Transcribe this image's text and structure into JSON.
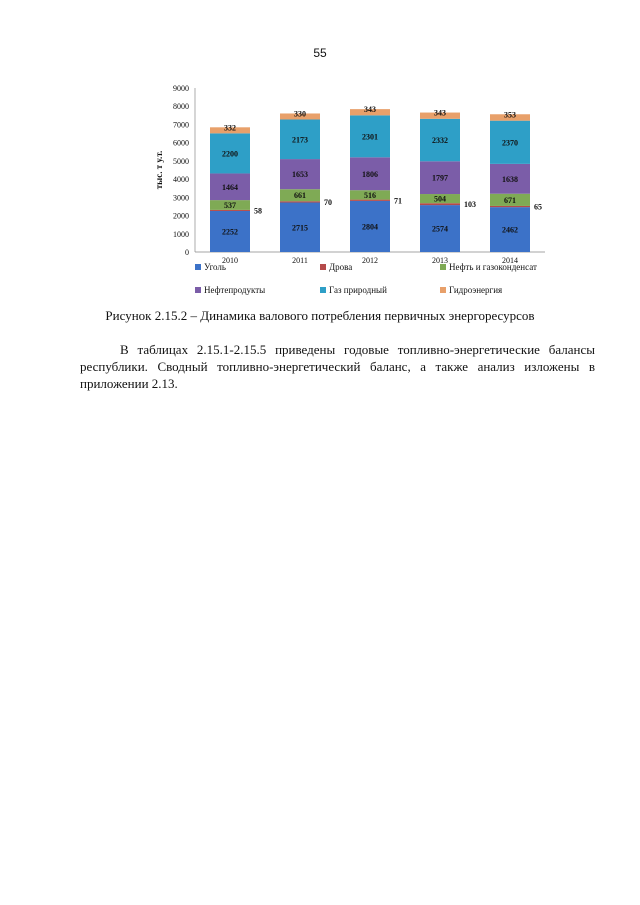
{
  "page": {
    "number": "55",
    "caption": "Рисунок 2.15.2 – Динамика валового потребления первичных энергоресурсов",
    "paragraph": "В таблицах 2.15.1-2.15.5 приведены годовые топливно-энергетические балансы республики. Сводный топливно-энергетический баланс, а также анализ изложены в приложении 2.13."
  },
  "chart_data": {
    "type": "bar",
    "stacked": true,
    "title": "",
    "xlabel": "",
    "ylabel": "тыс. т у.т.",
    "ylim": [
      0,
      9000
    ],
    "yticks": [
      0,
      1000,
      2000,
      3000,
      4000,
      5000,
      6000,
      7000,
      8000,
      9000
    ],
    "categories": [
      "2010",
      "2011",
      "2012",
      "2013",
      "2014"
    ],
    "legend_position": "bottom",
    "series": [
      {
        "name": "Уголь",
        "color": "#3c72c8",
        "values": [
          2252,
          2715,
          2804,
          2574,
          2462
        ]
      },
      {
        "name": "Дрова",
        "color": "#b54a4a",
        "values": [
          58,
          70,
          71,
          103,
          65
        ]
      },
      {
        "name": "Нефть и газоконденсат",
        "color": "#7faa55",
        "values": [
          537,
          661,
          516,
          504,
          671
        ]
      },
      {
        "name": "Нефтепродукты",
        "color": "#7b5da8",
        "values": [
          1464,
          1653,
          1806,
          1797,
          1638
        ]
      },
      {
        "name": "Газ природный",
        "color": "#2e9fc7",
        "values": [
          2200,
          2173,
          2301,
          2332,
          2370
        ]
      },
      {
        "name": "Гидроэнергия",
        "color": "#e8a06a",
        "values": [
          332,
          330,
          343,
          343,
          353
        ]
      }
    ]
  }
}
